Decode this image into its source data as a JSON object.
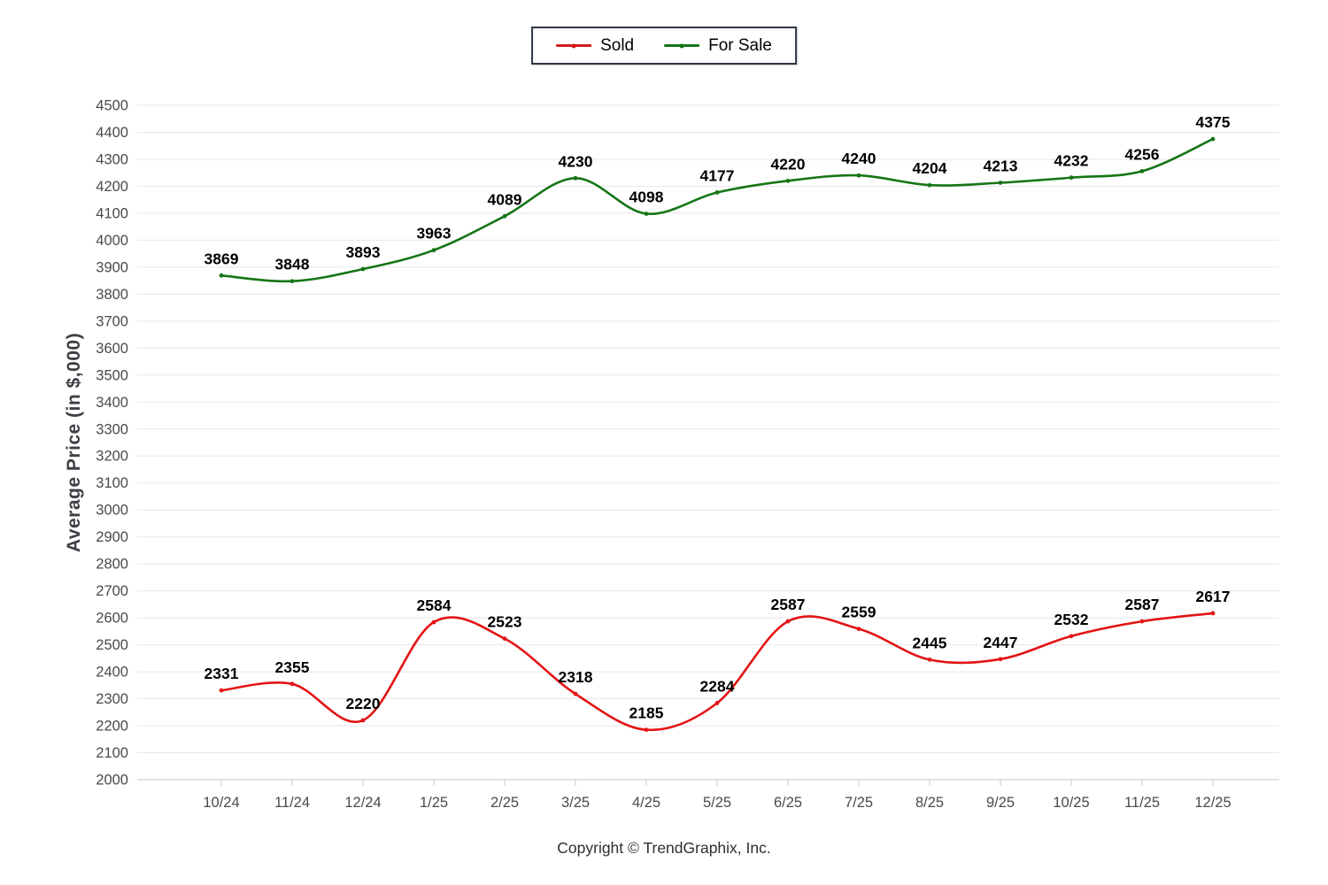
{
  "legend": {
    "items": [
      {
        "label": "Sold",
        "color": "#d21b1b"
      },
      {
        "label": "For Sale",
        "color": "#157515"
      }
    ]
  },
  "chart_data": {
    "type": "line",
    "title": "",
    "xlabel": "",
    "ylabel": "Average Price (in $,000)",
    "x": [
      "10/24",
      "11/24",
      "12/24",
      "1/25",
      "2/25",
      "3/25",
      "4/25",
      "5/25",
      "6/25",
      "7/25",
      "8/25",
      "9/25",
      "10/25",
      "11/25",
      "12/25"
    ],
    "series": [
      {
        "name": "Sold",
        "color": "#e31414",
        "values": [
          2331,
          2355,
          2220,
          2584,
          2523,
          2318,
          2185,
          2284,
          2587,
          2559,
          2445,
          2447,
          2532,
          2587,
          2617
        ]
      },
      {
        "name": "For Sale",
        "color": "#157515",
        "values": [
          3869,
          3848,
          3893,
          3963,
          4089,
          4230,
          4098,
          4177,
          4220,
          4240,
          4204,
          4213,
          4232,
          4256,
          4375
        ]
      }
    ],
    "ylim": [
      2000,
      4500
    ],
    "ytick_step": 100,
    "yticks": [
      2000,
      2100,
      2200,
      2300,
      2400,
      2500,
      2600,
      2700,
      2800,
      2900,
      3000,
      3100,
      3200,
      3300,
      3400,
      3500,
      3600,
      3700,
      3800,
      3900,
      4000,
      4100,
      4200,
      4300,
      4400,
      4500
    ],
    "grid": true,
    "legend_position": "top-center",
    "colors": {
      "gridline": "#e7e7e7",
      "axis_line": "#c9c9c9",
      "tick_label": "#4a4a4a",
      "data_label": "#000000"
    }
  },
  "footer": {
    "text": "Copyright © TrendGraphix, Inc."
  }
}
